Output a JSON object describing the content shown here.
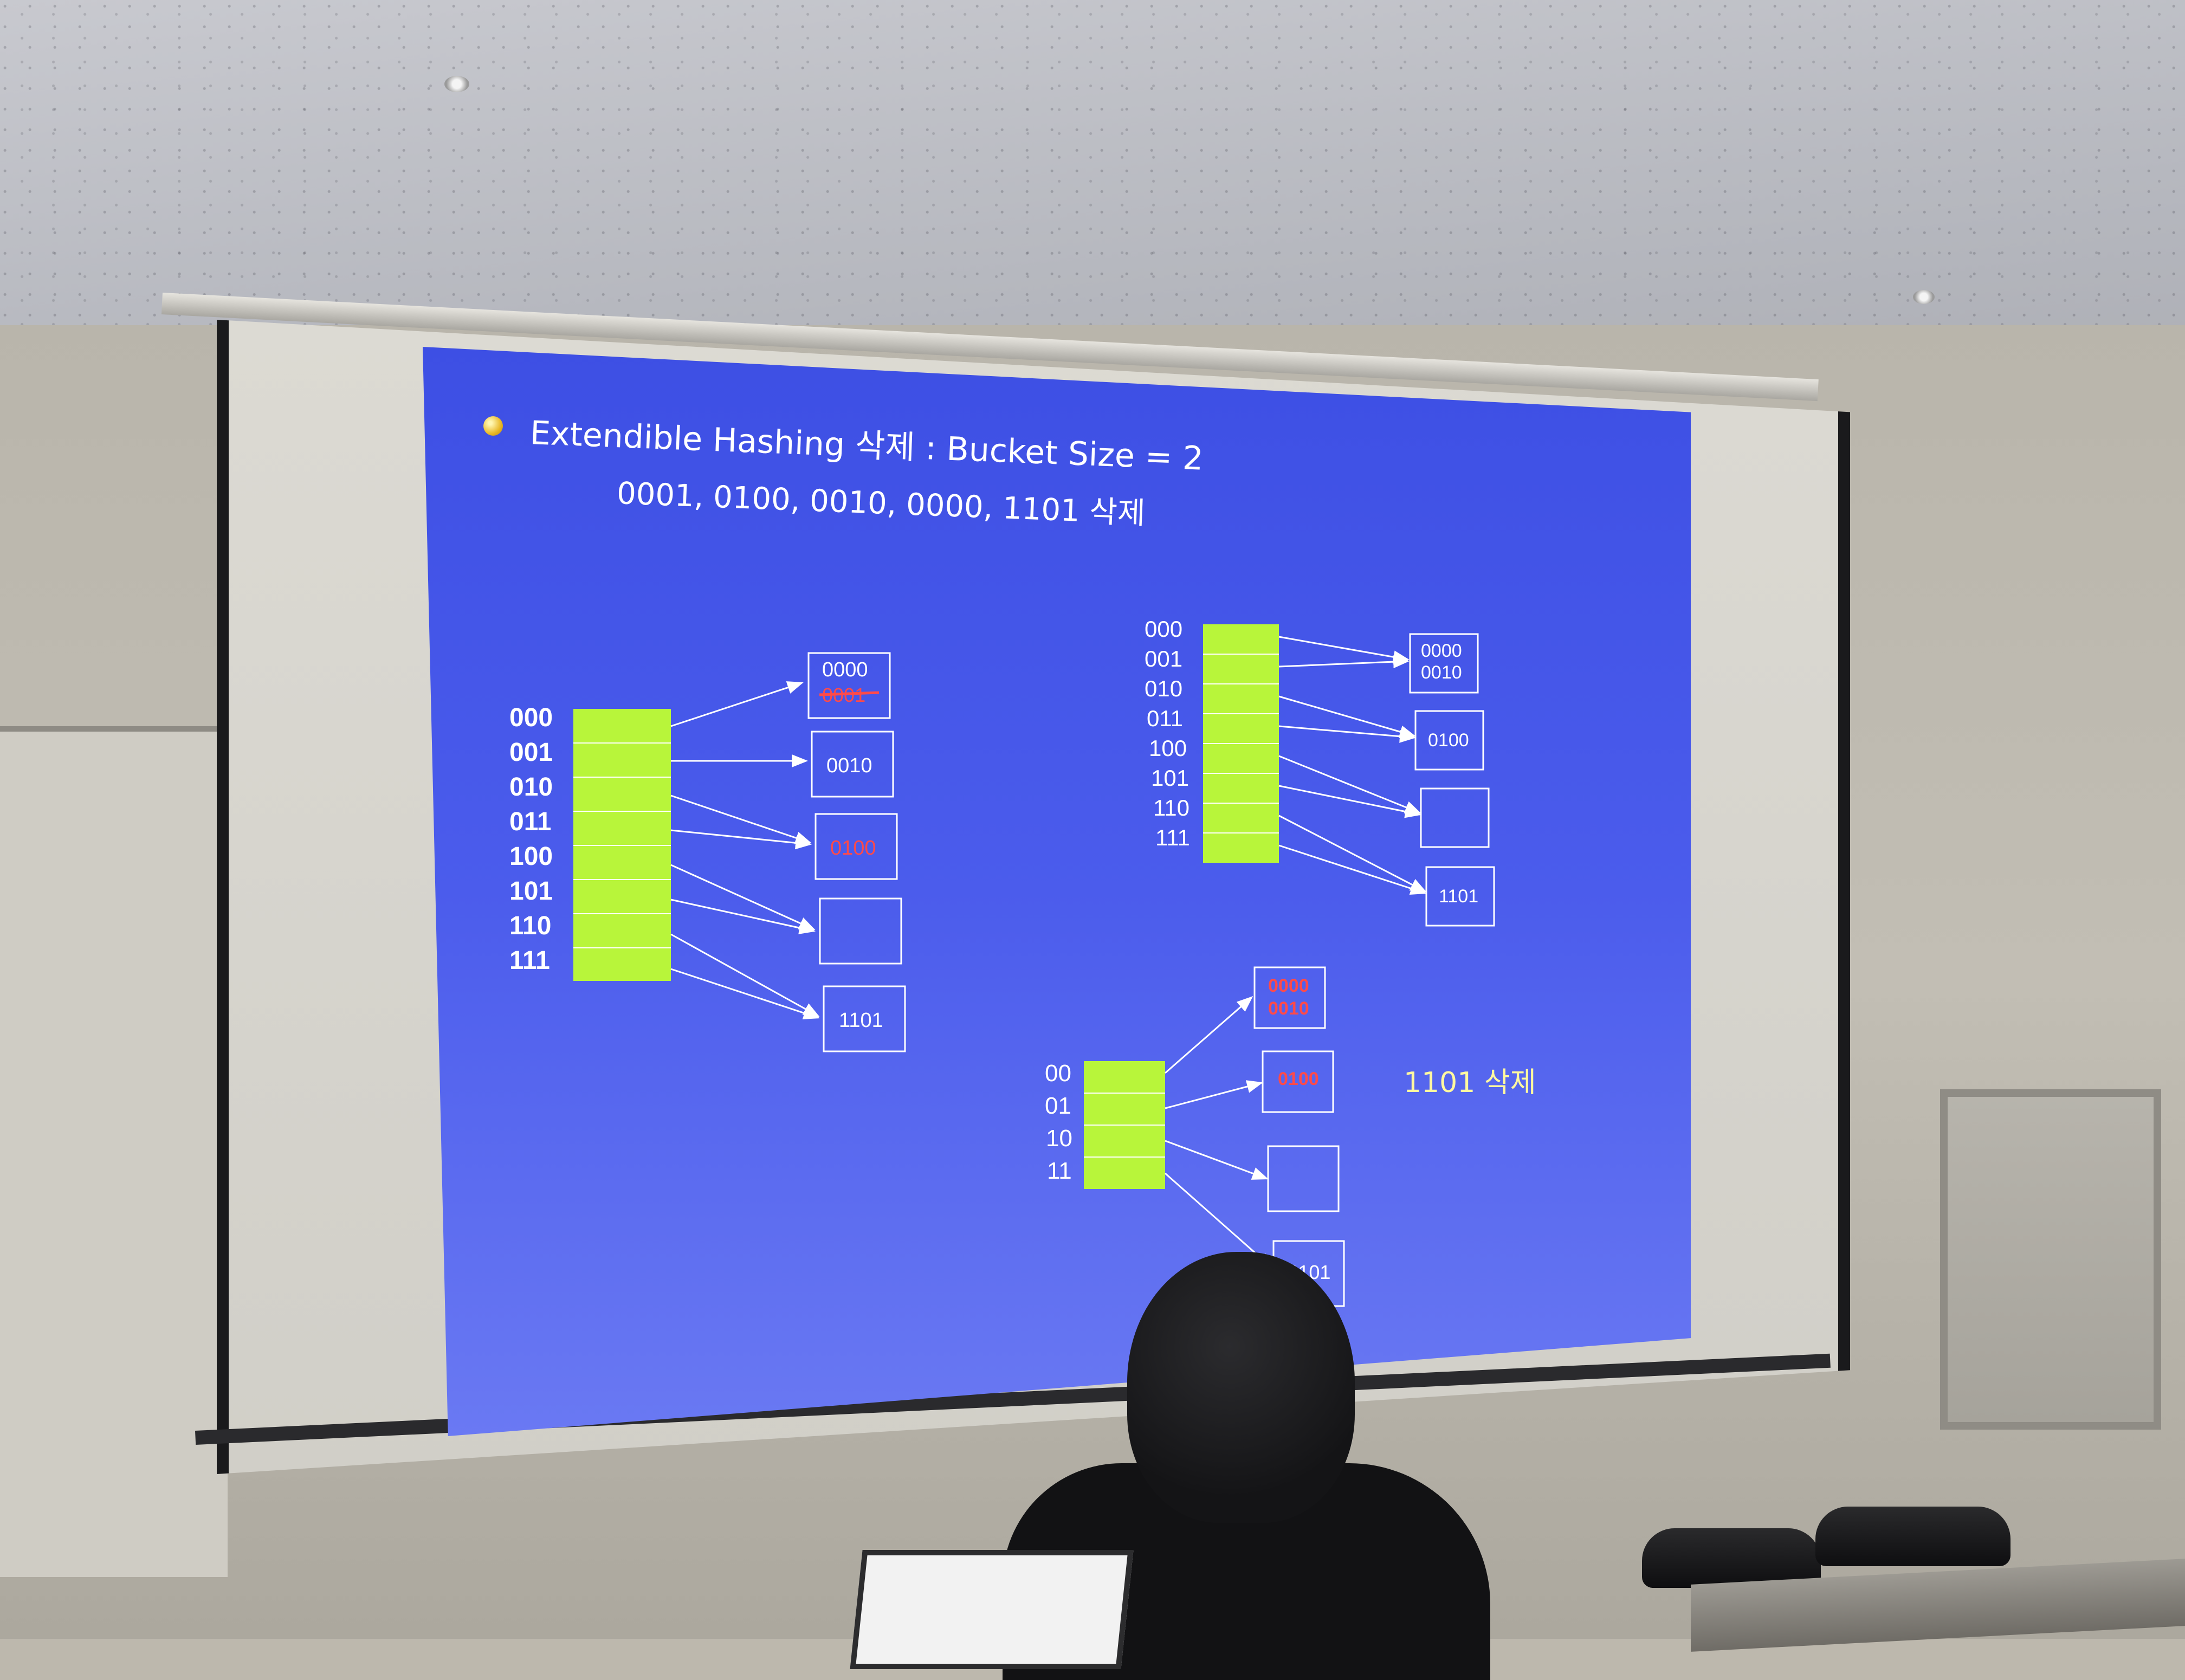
{
  "slide": {
    "title": "Extendible Hashing 삭제 : Bucket Size =  2",
    "subtitle": "0001, 0100, 0010, 0000, 1101 삭제",
    "bullet_color": "#e8b826",
    "background_color": "#4455e8",
    "directory_color": "#b8f53a"
  },
  "diagram_left": {
    "directory_labels": [
      "000",
      "001",
      "010",
      "011",
      "100",
      "101",
      "110",
      "111"
    ],
    "buckets": [
      {
        "lines": [
          "0000"
        ],
        "struck": "0001"
      },
      {
        "lines": [
          "0010"
        ]
      },
      {
        "lines": [
          "0100"
        ],
        "highlight": true
      },
      {
        "lines": []
      },
      {
        "lines": [
          "1101"
        ]
      }
    ]
  },
  "diagram_right": {
    "directory_labels": [
      "000",
      "001",
      "010",
      "011",
      "100",
      "101",
      "110",
      "111"
    ],
    "buckets": [
      {
        "lines": [
          "0000",
          "0010"
        ]
      },
      {
        "lines": [
          "0100"
        ]
      },
      {
        "lines": []
      },
      {
        "lines": [
          "1101"
        ]
      }
    ]
  },
  "diagram_bottom": {
    "directory_labels": [
      "00",
      "01",
      "10",
      "11"
    ],
    "buckets": [
      {
        "lines": [
          "0000",
          "0010"
        ],
        "highlight": true
      },
      {
        "lines": [
          "0100"
        ],
        "highlight": true
      },
      {
        "lines": []
      },
      {
        "lines": [
          "1101"
        ]
      }
    ],
    "note": "1101 삭제"
  }
}
